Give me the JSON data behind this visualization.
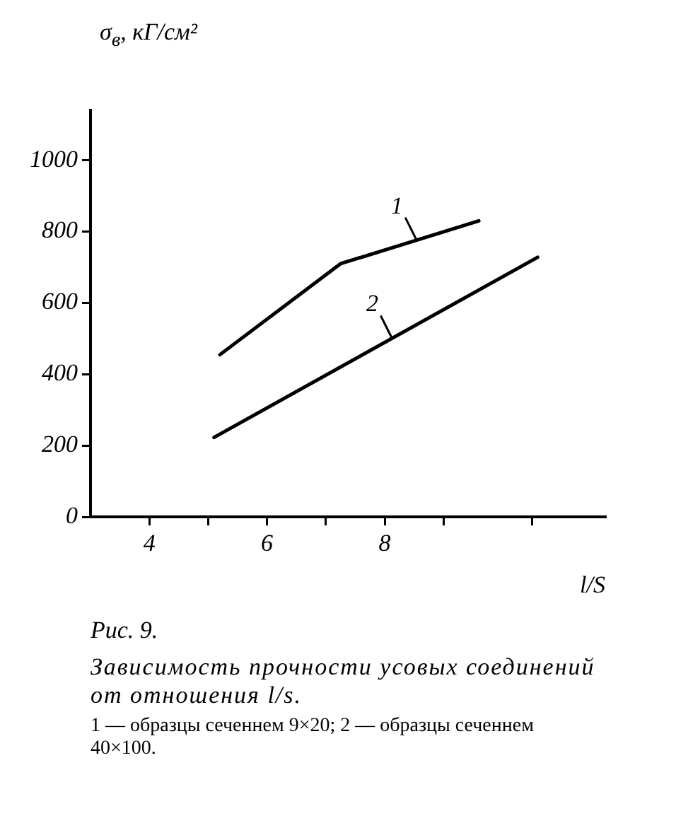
{
  "chart_data": {
    "type": "line",
    "title": "Рис. 9.",
    "subtitle": "Зависимость прочности усовых соединений от отношения l/s.",
    "annotations": [
      "1 — образцы сеченнем 9×20; 2 — образцы сеченнем 40×100."
    ],
    "xlabel": "l/S",
    "ylabel": "σ$_{в}$, кГ/см²",
    "series": [
      {
        "name": "1",
        "color": "#000000",
        "x": [
          5.2,
          7.25,
          9.6
        ],
        "values": [
          455,
          710,
          830
        ]
      },
      {
        "name": "2",
        "color": "#000000",
        "x": [
          5.1,
          10.6
        ],
        "values": [
          223,
          728
        ]
      }
    ],
    "xlim": [
      3,
      11.75
    ],
    "xticks": [
      4,
      {
        "value": 5,
        "label": null
      },
      6,
      {
        "value": 7,
        "label": null
      },
      8,
      {
        "value": 9,
        "label": null
      },
      {
        "value": 10.5,
        "label": null
      }
    ],
    "ylim": [
      0,
      1140
    ],
    "yticks": [
      0,
      200,
      400,
      600,
      800,
      1000
    ],
    "grid": false,
    "legend": false,
    "marker": "none",
    "line_style": "solid"
  }
}
